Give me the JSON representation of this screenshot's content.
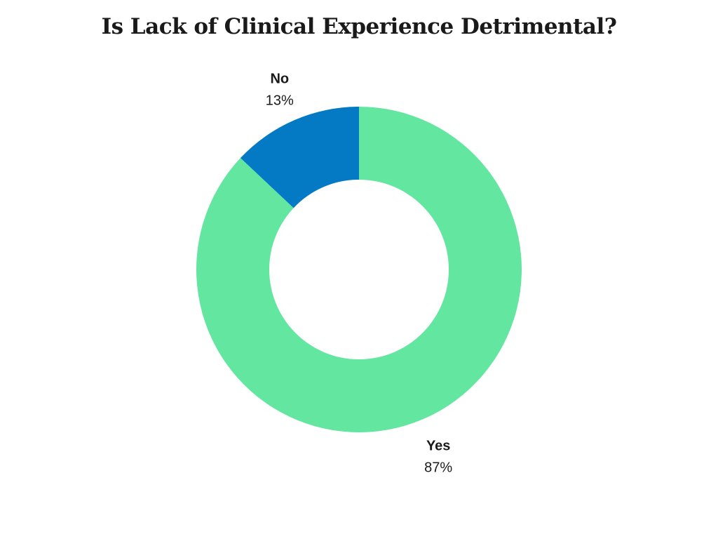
{
  "chart_data": {
    "type": "pie",
    "title": "Is Lack of Clinical Experience Detrimental?",
    "categories": [
      "No",
      "Yes"
    ],
    "values": [
      13,
      87
    ],
    "value_labels": [
      "13%",
      "87%"
    ],
    "colors": [
      "#0479C4",
      "#62E6A0"
    ],
    "donut": true,
    "legend": "none"
  }
}
